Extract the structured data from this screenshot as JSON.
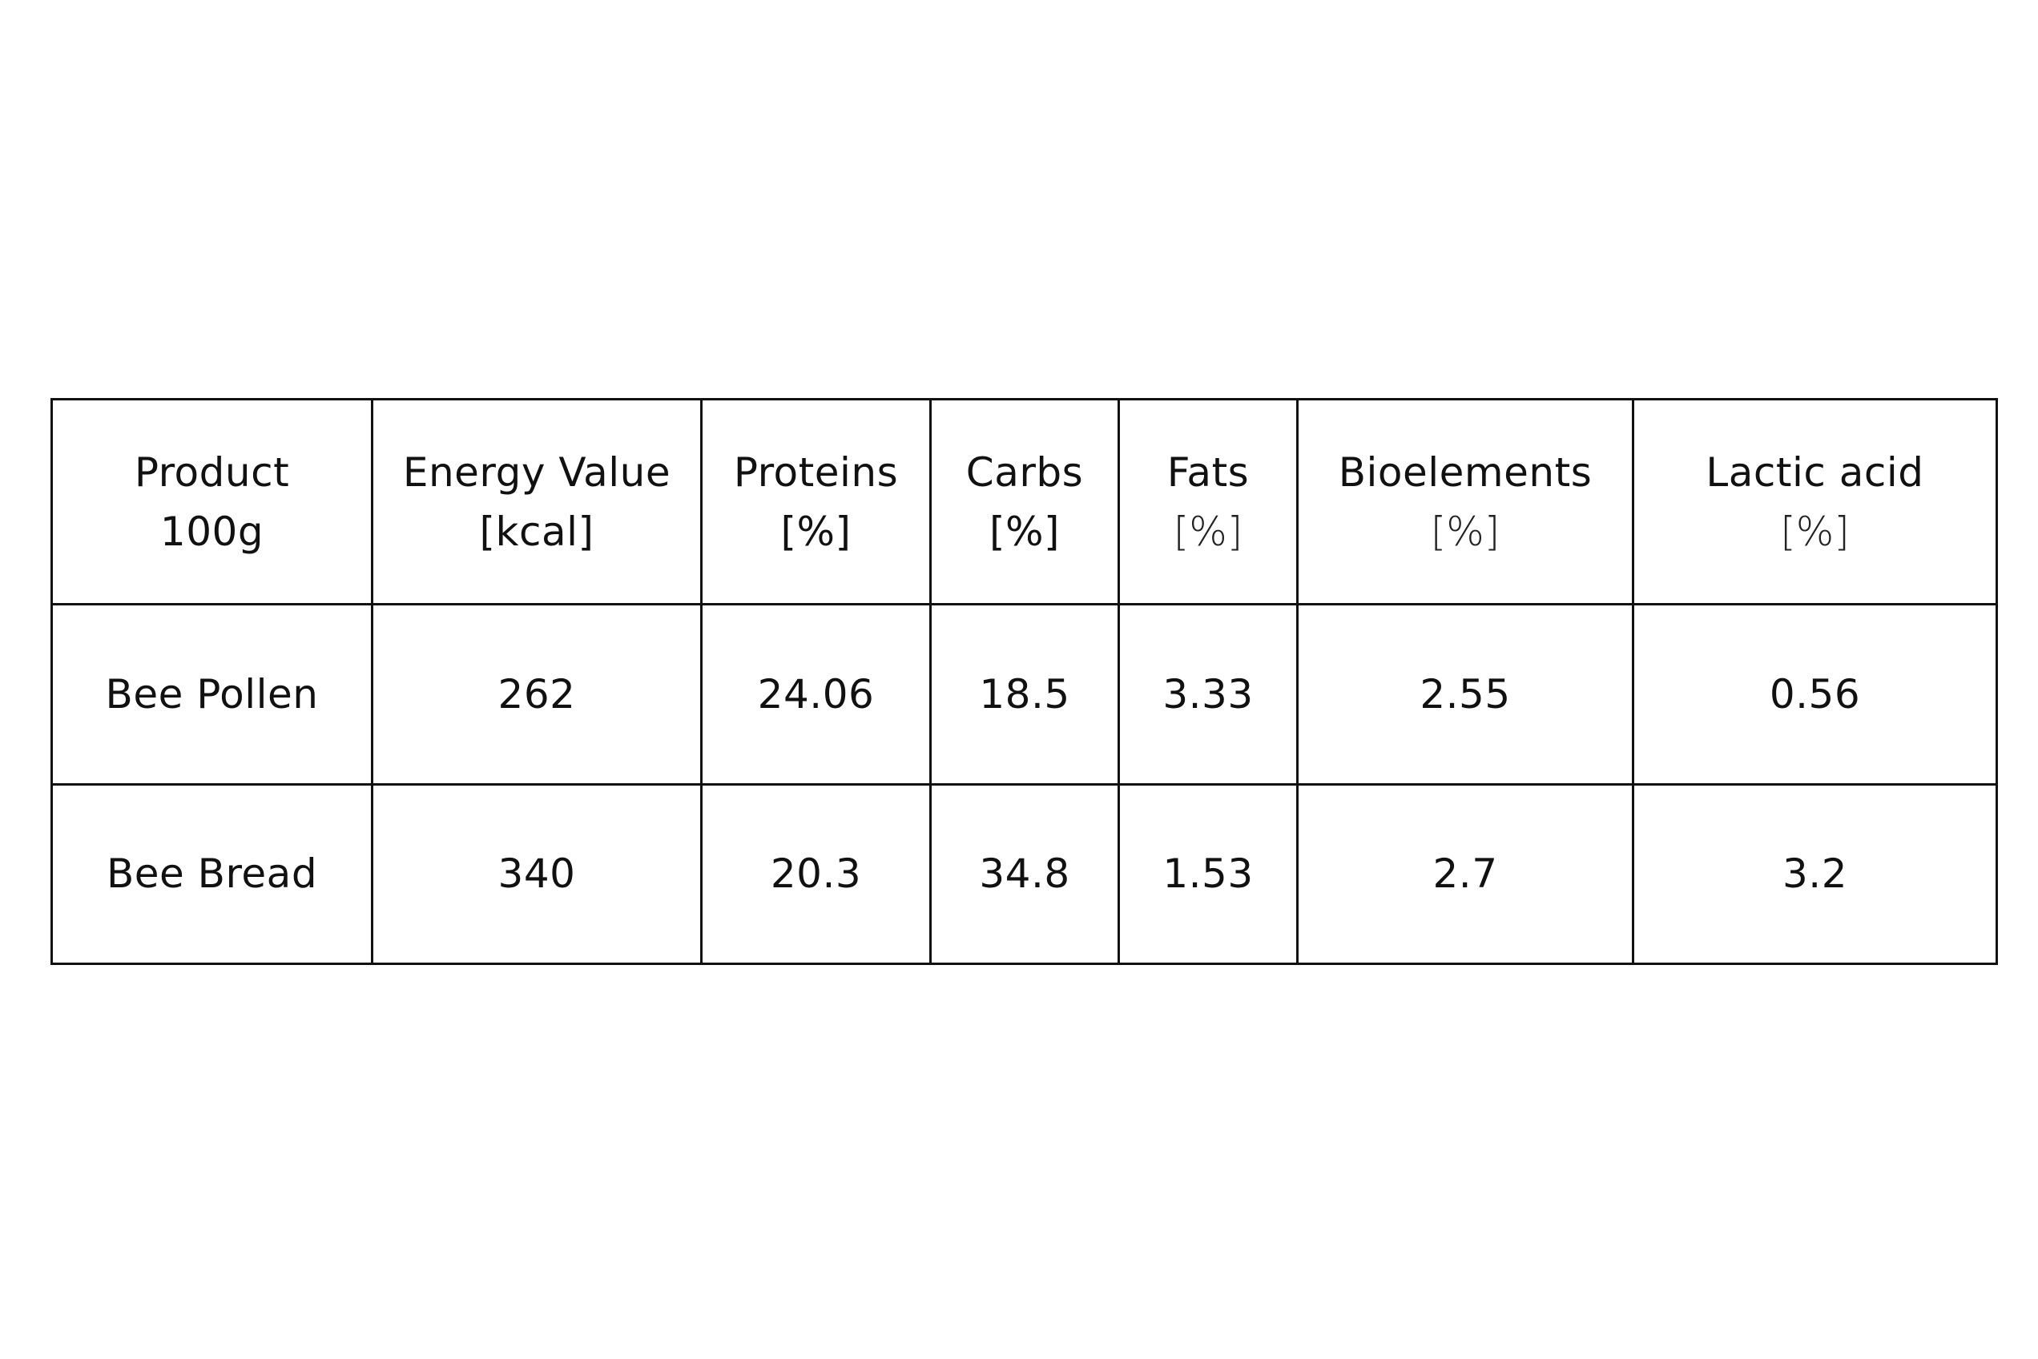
{
  "table": {
    "headers": [
      {
        "title": "Product",
        "unit": "100g"
      },
      {
        "title": "Energy Value",
        "unit": "[kcal]"
      },
      {
        "title": "Proteins",
        "unit": "[%]"
      },
      {
        "title": "Carbs",
        "unit": "[%]"
      },
      {
        "title": "Fats",
        "unit": "[%]"
      },
      {
        "title": "Bioelements",
        "unit": "[%]"
      },
      {
        "title": "Lactic acid",
        "unit": "[%]"
      }
    ],
    "rows": [
      {
        "product": "Bee Pollen",
        "values": [
          "262",
          "24.06",
          "18.5",
          "3.33",
          "2.55",
          "0.56"
        ]
      },
      {
        "product": "Bee Bread",
        "values": [
          "340",
          "20.3",
          "34.8",
          "1.53",
          "2.7",
          "3.2"
        ]
      }
    ]
  }
}
